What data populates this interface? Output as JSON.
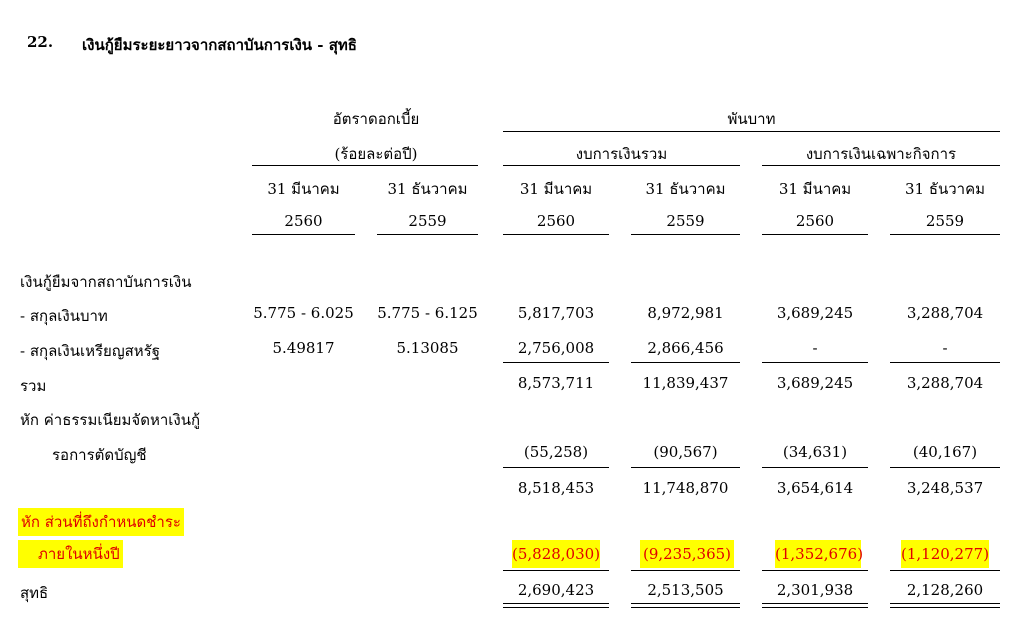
{
  "note": {
    "number": "22.",
    "title": "เงินกู้ยืมระยะยาวจากสถาบันการเงิน - สุทธิ"
  },
  "header": {
    "interest_rate": "อัตราดอกเบี้ย",
    "interest_rate_unit": "(ร้อยละต่อปี)",
    "thousand_baht": "พันบาท",
    "consolidated": "งบการเงินรวม",
    "separate": "งบการเงินเฉพาะกิจการ",
    "columns": [
      {
        "date": "31 มีนาคม",
        "year": "2560"
      },
      {
        "date": "31 ธันวาคม",
        "year": "2559"
      },
      {
        "date": "31 มีนาคม",
        "year": "2560"
      },
      {
        "date": "31 ธันวาคม",
        "year": "2559"
      },
      {
        "date": "31 มีนาคม",
        "year": "2560"
      },
      {
        "date": "31 ธันวาคม",
        "year": "2559"
      }
    ]
  },
  "rows": {
    "section_label": "เงินกู้ยืมจากสถาบันการเงิน",
    "baht": {
      "label": "- สกุลเงินบาท",
      "values": [
        "5.775 - 6.025",
        "5.775 - 6.125",
        "5,817,703",
        "8,972,981",
        "3,689,245",
        "3,288,704"
      ]
    },
    "usd": {
      "label": "- สกุลเงินเหรียญสหรัฐ",
      "values": [
        "5.49817",
        "5.13085",
        "2,756,008",
        "2,866,456",
        "-",
        "-"
      ]
    },
    "total": {
      "label": "รวม",
      "values": [
        "8,573,711",
        "11,839,437",
        "3,689,245",
        "3,288,704"
      ]
    },
    "fee": {
      "label_line1": "หัก ค่าธรรมเนียมจัดหาเงินกู้",
      "label_line2": "รอการตัดบัญชี",
      "values": [
        "(55,258)",
        "(90,567)",
        "(34,631)",
        "(40,167)"
      ]
    },
    "subtotal": {
      "values": [
        "8,518,453",
        "11,748,870",
        "3,654,614",
        "3,248,537"
      ]
    },
    "current": {
      "label_line1": "หัก ส่วนที่ถึงกำหนดชำระ",
      "label_line2": "ภายในหนึ่งปี",
      "values": [
        "(5,828,030)",
        "(9,235,365)",
        "(1,352,676)",
        "(1,120,277)"
      ]
    },
    "net": {
      "label": "สุทธิ",
      "values": [
        "2,690,423",
        "2,513,505",
        "2,301,938",
        "2,128,260"
      ]
    }
  },
  "colors": {
    "highlight": "#ffff00",
    "highlight_text": "#e00000"
  }
}
